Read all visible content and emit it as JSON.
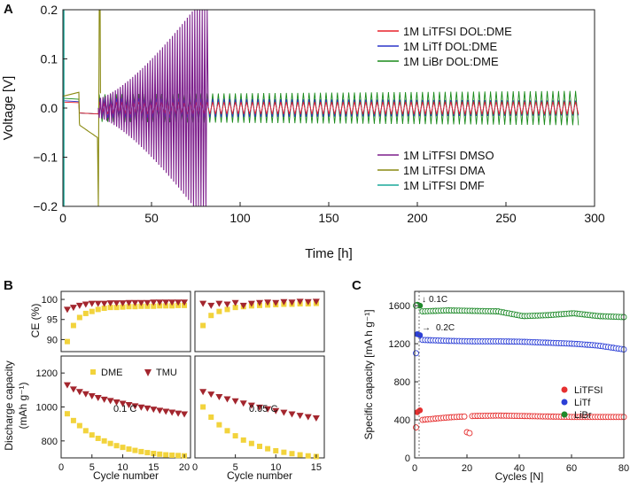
{
  "colors": {
    "LiTFSI_DOL_DME": "#e8202a",
    "LiTf_DOL_DME": "#2b35c8",
    "LiBr_DOL_DME": "#1a8a1a",
    "LiTFSI_DMSO": "#7d1f8c",
    "LiTFSI_DMA": "#8a8a12",
    "LiTFSI_DMF": "#1aa89a",
    "DME": "#f2d33c",
    "TMU": "#a3262e",
    "C_LiTFSI": "#e63030",
    "C_LiTf": "#2c3fd6",
    "C_LiBr": "#1e8a2a"
  },
  "chart_data": [
    {
      "panel": "A",
      "type": "line",
      "xlabel": "Time [h]",
      "ylabel": "Voltage [V]",
      "xlim": [
        0,
        300
      ],
      "ylim": [
        -0.2,
        0.2
      ],
      "xticks": [
        "0",
        "50",
        "100",
        "150",
        "200",
        "250",
        "300"
      ],
      "yticks": [
        "−0.2",
        "−0.1",
        "0.0",
        "0.1",
        "0.2"
      ],
      "series": [
        {
          "name": "1M LiTFSI DOL:DME",
          "t_start": 0,
          "t_end": 292,
          "amplitude": [
            0.012,
            0.013
          ]
        },
        {
          "name": "1M LiTf DOL:DME",
          "t_start": 0,
          "t_end": 292,
          "amplitude": [
            0.02,
            0.015
          ]
        },
        {
          "name": "1M LiBr DOL:DME",
          "t_start": 0,
          "t_end": 292,
          "amplitude": [
            0.028,
            0.035
          ]
        },
        {
          "name": "1M LiTFSI DMSO",
          "t_start": 20,
          "t_end": 82,
          "amplitude": [
            0.02,
            0.2
          ]
        },
        {
          "name": "1M LiTFSI DMA",
          "t_start": 0,
          "t_end": 21,
          "amplitude": [
            0.022,
            0.2
          ]
        },
        {
          "name": "1M LiTFSI DMF",
          "t_start": 0,
          "t_end": 1,
          "amplitude": [
            0.2,
            0.2
          ]
        }
      ]
    },
    {
      "panel": "B",
      "type": "scatter",
      "ylabel": "Discharge capacity",
      "yunit": "(mAh g⁻¹)",
      "ce_label": "CE (%)",
      "xlabel": "Cycle number",
      "legend": [
        "DME",
        "TMU"
      ],
      "subpanels": [
        {
          "rate": "0.1 C",
          "xlim": [
            0,
            21
          ],
          "xticks": [
            "0",
            "5",
            "10",
            "15",
            "20"
          ],
          "x": [
            1,
            2,
            3,
            4,
            5,
            6,
            7,
            8,
            9,
            10,
            11,
            12,
            13,
            14,
            15,
            16,
            17,
            18,
            19,
            20
          ],
          "ce_ylim": [
            87,
            102
          ],
          "ce_yticks": [
            "90",
            "95",
            "100"
          ],
          "ce_DME": [
            89.5,
            93.5,
            95.5,
            96.5,
            97.0,
            97.5,
            97.8,
            98.0,
            98.0,
            98.1,
            98.2,
            98.2,
            98.3,
            98.3,
            98.3,
            98.4,
            98.4,
            98.4,
            98.5,
            98.5
          ],
          "ce_TMU": [
            97.5,
            98.0,
            98.5,
            98.8,
            99.0,
            99.0,
            99.0,
            99.1,
            99.1,
            99.1,
            99.2,
            99.2,
            99.2,
            99.2,
            99.3,
            99.3,
            99.3,
            99.3,
            99.3,
            99.3
          ],
          "cap_ylim": [
            700,
            1300
          ],
          "cap_yticks": [
            "800",
            "1000",
            "1200"
          ],
          "cap_DME": [
            960,
            920,
            890,
            860,
            835,
            815,
            800,
            785,
            772,
            762,
            752,
            744,
            737,
            731,
            726,
            722,
            718,
            716,
            714,
            712
          ],
          "cap_TMU": [
            1130,
            1105,
            1090,
            1077,
            1065,
            1055,
            1045,
            1037,
            1029,
            1021,
            1013,
            1006,
            999,
            993,
            986,
            980,
            974,
            969,
            963,
            958
          ]
        },
        {
          "rate": "0.05 C",
          "xlim": [
            0,
            16
          ],
          "xticks": [
            "0",
            "5",
            "10",
            "15"
          ],
          "x": [
            1,
            2,
            3,
            4,
            5,
            6,
            7,
            8,
            9,
            10,
            11,
            12,
            13,
            14,
            15
          ],
          "ce_ylim": [
            87,
            102
          ],
          "ce_DME": [
            93.5,
            96.0,
            97.0,
            97.5,
            98.0,
            98.2,
            98.4,
            98.5,
            98.6,
            98.7,
            98.8,
            98.8,
            98.9,
            98.9,
            99.0
          ],
          "ce_TMU": [
            99.0,
            98.5,
            99.0,
            98.8,
            99.2,
            98.5,
            99.0,
            99.2,
            99.3,
            99.2,
            99.4,
            99.3,
            99.5,
            99.4,
            99.5
          ],
          "cap_ylim": [
            700,
            1300
          ],
          "cap_DME": [
            1000,
            940,
            895,
            860,
            830,
            805,
            785,
            768,
            754,
            742,
            733,
            725,
            718,
            712,
            708
          ],
          "cap_TMU": [
            1090,
            1075,
            1060,
            1047,
            1035,
            1022,
            1010,
            998,
            988,
            978,
            968,
            958,
            950,
            942,
            935
          ]
        }
      ]
    },
    {
      "panel": "C",
      "type": "scatter",
      "ylabel": "Specific capacity [mA h g⁻¹]",
      "xlabel": "Cycles [N]",
      "xlim": [
        0,
        80
      ],
      "ylim": [
        0,
        1750
      ],
      "xticks": [
        "0",
        "20",
        "40",
        "60",
        "80"
      ],
      "yticks": [
        "0",
        "400",
        "800",
        "1200",
        "1600"
      ],
      "annotations": [
        "0.1C",
        "0.2C"
      ],
      "series": [
        {
          "name": "LiTFSI",
          "first_cycles": [
            480,
            500
          ],
          "steady": [
            400,
            425,
            440,
            445,
            440,
            435,
            430,
            430,
            430
          ],
          "dips": [
            270,
            260
          ]
        },
        {
          "name": "LiTf",
          "first_cycles": [
            1300,
            1290
          ],
          "steady": [
            1240,
            1230,
            1225,
            1225,
            1220,
            1210,
            1200,
            1180,
            1140
          ]
        },
        {
          "name": "LiBr",
          "first_cycles": [
            1610,
            1600
          ],
          "steady": [
            1540,
            1550,
            1545,
            1540,
            1490,
            1500,
            1520,
            1490,
            1480
          ]
        }
      ]
    }
  ]
}
